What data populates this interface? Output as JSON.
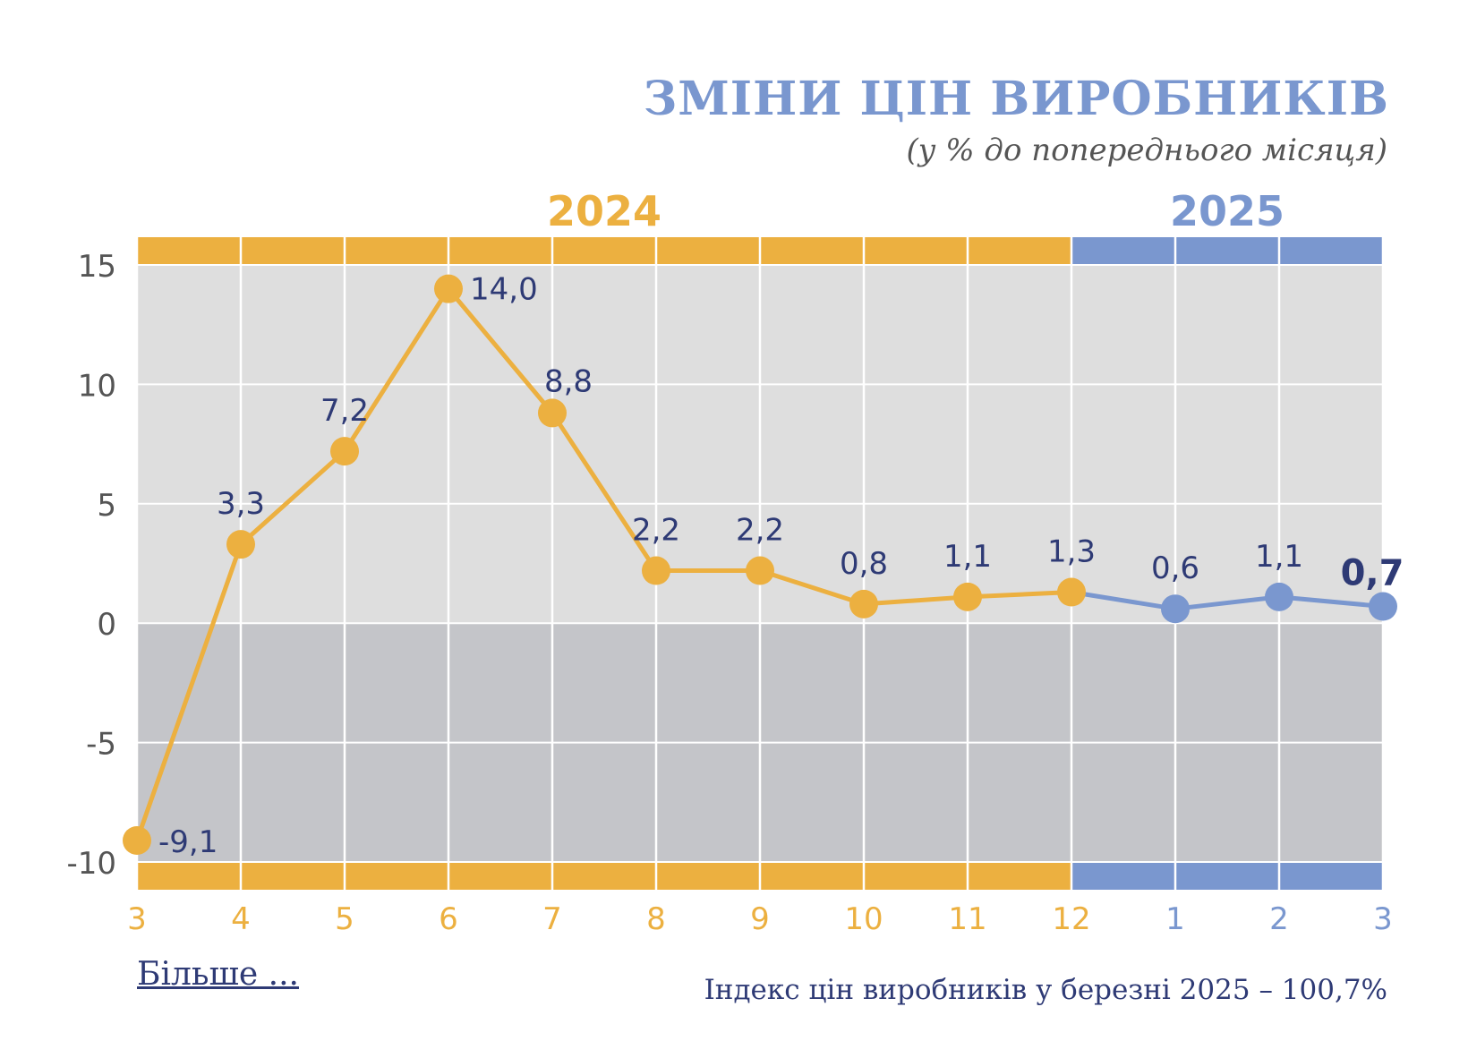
{
  "header": {
    "title": "ЗМІНИ ЦІН ВИРОБНИКІВ",
    "subtitle": "(у % до попереднього місяця)"
  },
  "footer": {
    "more_link": "Більше ...",
    "note": "Індекс цін виробників у березні 2025 – 100,7%"
  },
  "colors": {
    "year_2024": "#ecb040",
    "year_2025": "#7a97cf",
    "plot_upper": "#dedede",
    "plot_lower": "#c4c5c9",
    "label": "#2e3a75",
    "axis_text": "#555555"
  },
  "chart_data": {
    "type": "line",
    "year_groups": [
      {
        "label": "2024",
        "from_index": 0,
        "to_index": 9
      },
      {
        "label": "2025",
        "from_index": 9,
        "to_index": 12
      }
    ],
    "categories": [
      "3",
      "4",
      "5",
      "6",
      "7",
      "8",
      "9",
      "10",
      "11",
      "12",
      "1",
      "2",
      "3"
    ],
    "values": [
      -9.1,
      3.3,
      7.2,
      14.0,
      8.8,
      2.2,
      2.2,
      0.8,
      1.1,
      1.3,
      0.6,
      1.1,
      0.7
    ],
    "value_labels": [
      "-9,1",
      "3,3",
      "7,2",
      "14,0",
      "8,8",
      "2,2",
      "2,2",
      "0,8",
      "1,1",
      "1,3",
      "0,6",
      "1,1",
      "0,7"
    ],
    "y_ticks": [
      15,
      10,
      5,
      0,
      -5,
      -10
    ],
    "y_tick_labels": [
      "15",
      "10",
      "5",
      "0",
      "-5",
      "-10"
    ],
    "ylim": [
      -10,
      15
    ],
    "grid": true,
    "highlight_last": true
  }
}
